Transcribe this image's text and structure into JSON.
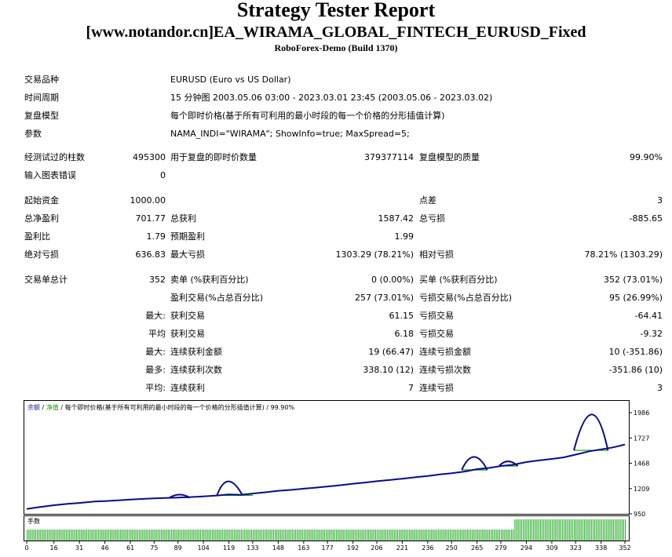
{
  "header": {
    "title": "Strategy Tester Report",
    "subtitle": "[www.notandor.cn]EA_WIRAMA_GLOBAL_FINTECH_EURUSD_Fixed",
    "server": "RoboForex-Demo (Build 1370)"
  },
  "settings": {
    "symbol_label": "交易品种",
    "symbol": "EURUSD (Euro vs US Dollar)",
    "period_label": "时间周期",
    "period": "15 分钟图 2003.05.06 03:00 - 2023.03.01 23:45 (2003.05.06 - 2023.03.02)",
    "model_label": "复盘模型",
    "model": "每个即时价格(基于所有可利用的最小时段的每一个价格的分形插值计算)",
    "params_label": "参数",
    "params": "NAMA_INDI=\"WIRAMA\"; ShowInfo=true; MaxSpread=5;"
  },
  "quality": {
    "bars_label": "经测试过的柱数",
    "bars": "495300",
    "ticks_label": "用于复盘的即时价数量",
    "ticks": "379377114",
    "quality_label": "复盘模型的质量",
    "quality": "99.90%",
    "errors_label": "输入图表错误",
    "errors": "0"
  },
  "results": {
    "deposit_label": "起始资金",
    "deposit": "1000.00",
    "spread_label": "点差",
    "spread": "3",
    "net_profit_label": "总净盈利",
    "net_profit": "701.77",
    "gross_profit_label": "总获利",
    "gross_profit": "1587.42",
    "gross_loss_label": "总亏损",
    "gross_loss": "-885.65",
    "profit_factor_label": "盈利比",
    "profit_factor": "1.79",
    "expected_payoff_label": "预期盈利",
    "expected_payoff": "1.99",
    "abs_dd_label": "绝对亏损",
    "abs_dd": "636.83",
    "max_dd_label": "最大亏损",
    "max_dd": "1303.29 (78.21%)",
    "rel_dd_label": "相对亏损",
    "rel_dd": "78.21% (1303.29)"
  },
  "trades": {
    "total_label": "交易单总计",
    "total": "352",
    "short_label": "卖单 (%获利百分比)",
    "short": "0 (0.00%)",
    "long_label": "买单 (%获利百分比)",
    "long": "352 (73.01%)",
    "profit_trades_label": "盈利交易(%占总百分比)",
    "profit_trades": "257 (73.01%)",
    "loss_trades_label": "亏损交易(%占总百分比)",
    "loss_trades": "95 (26.99%)",
    "largest_prefix": "最大:",
    "largest_profit_label": "获利交易",
    "largest_profit": "61.15",
    "largest_loss_label": "亏损交易",
    "largest_loss": "-64.41",
    "average_prefix": "平均",
    "average_profit_label": "获利交易",
    "average_profit": "6.18",
    "average_loss_label": "亏损交易",
    "average_loss": "-9.32",
    "max_prefix": "最大:",
    "max_consec_wins_label": "连续获利金额",
    "max_consec_wins": "19 (66.47)",
    "max_consec_losses_label": "连续亏损金额",
    "max_consec_losses": "10 (-351.86)",
    "most_prefix": "最多:",
    "max_consec_profit_label": "连续获利次数",
    "max_consec_profit": "338.10 (12)",
    "max_consec_loss_label": "连续亏损次数",
    "max_consec_loss": "-351.86 (10)",
    "avg_prefix": "平均:",
    "avg_consec_wins_label": "连续获利",
    "avg_consec_wins": "7",
    "avg_consec_losses_label": "连续亏损",
    "avg_consec_losses": "3"
  },
  "chart_legend": {
    "balance": "余额",
    "sep1": " / ",
    "equity": "净值",
    "rest": " / 每个即时价格(基于所有可利用的最小时段的每一个价格的分形插值计算) / 99.90%"
  },
  "volume_label": "手数",
  "chart_data": {
    "type": "line",
    "x_ticks": [
      "0",
      "16",
      "31",
      "46",
      "61",
      "75",
      "89",
      "104",
      "119",
      "133",
      "148",
      "163",
      "177",
      "192",
      "206",
      "221",
      "236",
      "250",
      "265",
      "279",
      "294",
      "309",
      "323",
      "338",
      "352"
    ],
    "y_ticks": [
      "1986",
      "1727",
      "1468",
      "1209",
      "950"
    ],
    "ylim": [
      950,
      1986
    ],
    "xlim": [
      0,
      352
    ],
    "colors": {
      "balance": "#0a0a8c",
      "equity": "#00a000",
      "volume": "#3cb43c"
    },
    "balance": [
      [
        0,
        1000
      ],
      [
        8,
        1020
      ],
      [
        16,
        1038
      ],
      [
        24,
        1052
      ],
      [
        31,
        1062
      ],
      [
        40,
        1076
      ],
      [
        46,
        1080
      ],
      [
        55,
        1090
      ],
      [
        61,
        1096
      ],
      [
        70,
        1104
      ],
      [
        75,
        1108
      ],
      [
        82,
        1112
      ],
      [
        89,
        1116
      ],
      [
        95,
        1120
      ],
      [
        104,
        1128
      ],
      [
        112,
        1138
      ],
      [
        119,
        1148
      ],
      [
        126,
        1144
      ],
      [
        133,
        1158
      ],
      [
        140,
        1170
      ],
      [
        148,
        1186
      ],
      [
        156,
        1196
      ],
      [
        163,
        1208
      ],
      [
        170,
        1218
      ],
      [
        177,
        1230
      ],
      [
        185,
        1244
      ],
      [
        192,
        1258
      ],
      [
        200,
        1272
      ],
      [
        206,
        1284
      ],
      [
        214,
        1298
      ],
      [
        221,
        1310
      ],
      [
        229,
        1326
      ],
      [
        236,
        1338
      ],
      [
        243,
        1354
      ],
      [
        250,
        1366
      ],
      [
        258,
        1384
      ],
      [
        265,
        1408
      ],
      [
        272,
        1420
      ],
      [
        279,
        1440
      ],
      [
        286,
        1452
      ],
      [
        294,
        1480
      ],
      [
        301,
        1496
      ],
      [
        309,
        1512
      ],
      [
        316,
        1528
      ],
      [
        323,
        1556
      ],
      [
        331,
        1590
      ],
      [
        338,
        1610
      ],
      [
        345,
        1630
      ],
      [
        352,
        1660
      ]
    ],
    "drawdowns": [
      {
        "start": 84,
        "peak": 90,
        "end": 96,
        "level": 1116,
        "top": 1148
      },
      {
        "start": 112,
        "peak": 118,
        "end": 127,
        "level": 1140,
        "top": 1290
      },
      {
        "start": 126,
        "peak": 136,
        "end": 133,
        "level": 1140,
        "top": 1140
      },
      {
        "start": 256,
        "peak": 263,
        "end": 271,
        "level": 1400,
        "top": 1540
      },
      {
        "start": 278,
        "peak": 283,
        "end": 289,
        "level": 1440,
        "top": 1490
      },
      {
        "start": 322,
        "peak": 333,
        "end": 342,
        "level": 1600,
        "top": 1986
      }
    ],
    "volume": {
      "first_lot": 0.01,
      "second_lot": 0.02,
      "switch_trade": 287
    }
  }
}
